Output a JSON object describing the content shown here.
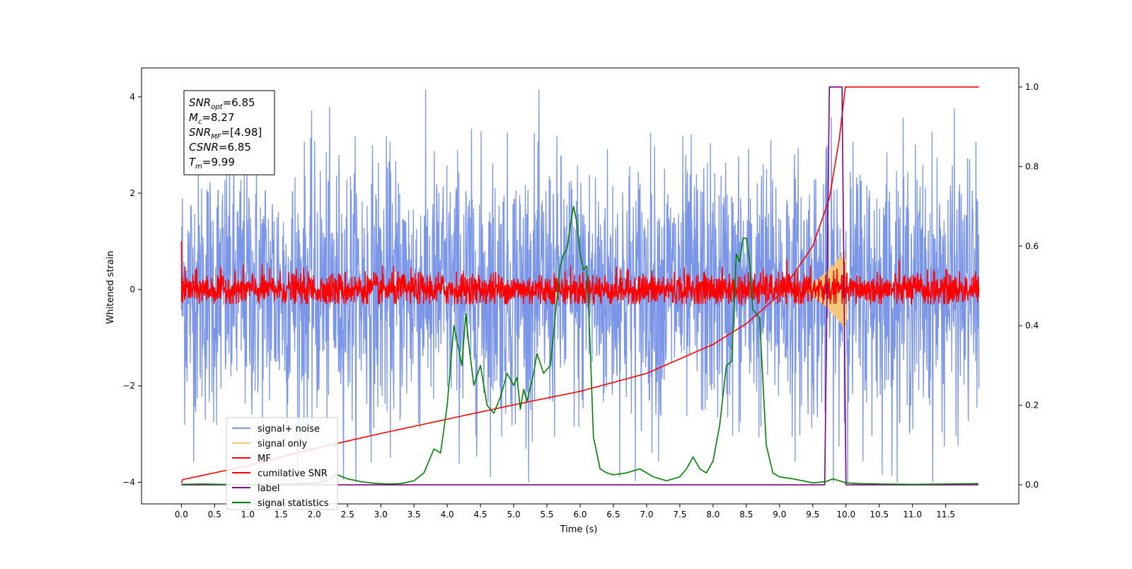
{
  "chart_data": {
    "type": "line",
    "title": "",
    "xlabel": "Time (s)",
    "ylabel": "Whitened strain",
    "y2label": "",
    "xlim": [
      -0.6,
      12.6
    ],
    "ylim": [
      -4.45,
      4.6
    ],
    "y2lim": [
      -0.048,
      1.048
    ],
    "xticks": [
      0.0,
      0.5,
      1.0,
      1.5,
      2.0,
      2.5,
      3.0,
      3.5,
      4.0,
      4.5,
      5.0,
      5.5,
      6.0,
      6.5,
      7.0,
      7.5,
      8.0,
      8.5,
      9.0,
      9.5,
      10.0,
      10.5,
      11.0,
      11.5
    ],
    "xtick_labels": [
      "0.0",
      "0.5",
      "1.0",
      "1.5",
      "2.0",
      "2.5",
      "3.0",
      "3.5",
      "4.0",
      "4.5",
      "5.0",
      "5.5",
      "6.0",
      "6.5",
      "7.0",
      "7.5",
      "8.0",
      "8.5",
      "9.0",
      "9.5",
      "10.0",
      "10.5",
      "11.0",
      "11.5"
    ],
    "yticks": [
      -4,
      -2,
      0,
      2,
      4
    ],
    "ytick_labels": [
      "−4",
      "−2",
      "0",
      "2",
      "4"
    ],
    "y2ticks": [
      0.0,
      0.2,
      0.4,
      0.6,
      0.8,
      1.0
    ],
    "y2tick_labels": [
      "0.0",
      "0.2",
      "0.4",
      "0.6",
      "0.8",
      "1.0"
    ],
    "grid": false,
    "legend_position": "lower-left",
    "annotation": [
      {
        "base": "SNR",
        "sub": "opt",
        "value": "=6.85"
      },
      {
        "base": "M",
        "sub": "c",
        "value": "=8.27"
      },
      {
        "base": "SNR",
        "sub": "MF",
        "value": "=[4.98]"
      },
      {
        "base": "CSNR",
        "sub": "",
        "value": "=6.85"
      },
      {
        "base": "T",
        "sub": "m",
        "value": "=9.99"
      }
    ],
    "series": [
      {
        "name": "signal+ noise",
        "axis": "left",
        "color": "#7b96e8",
        "description_noise": {
          "x_range": [
            0.0,
            12.0
          ],
          "typical_amplitude": 1.3,
          "extreme_range": [
            -4.0,
            4.15
          ]
        }
      },
      {
        "name": "signal only",
        "axis": "left",
        "color": "#f5c77a",
        "chirp": {
          "start": 9.3,
          "peak_time": 9.99,
          "end": 10.05,
          "peak_amplitude": 0.85
        }
      },
      {
        "name": "MF",
        "axis": "left",
        "color": "#ff0000",
        "description_noise": {
          "x_range": [
            0.0,
            12.0
          ],
          "typical_amplitude": 0.25,
          "extreme_range": [
            -0.3,
            1.0
          ]
        }
      },
      {
        "name": "cumilative SNR",
        "axis": "right",
        "color": "#ff0000",
        "x": [
          0.0,
          0.02,
          1.0,
          2.0,
          3.0,
          4.0,
          5.0,
          6.0,
          7.0,
          8.0,
          8.5,
          9.0,
          9.5,
          9.75,
          9.9,
          9.99,
          12.0
        ],
        "y": [
          0.005,
          0.013,
          0.048,
          0.091,
          0.129,
          0.165,
          0.201,
          0.235,
          0.28,
          0.353,
          0.405,
          0.478,
          0.6,
          0.72,
          0.87,
          1.0,
          1.0
        ]
      },
      {
        "name": "label",
        "axis": "right",
        "color": "#800080",
        "x": [
          0.0,
          9.68,
          9.75,
          9.94,
          10.0,
          11.99
        ],
        "y": [
          0.0,
          0.0,
          1.0,
          1.0,
          0.0,
          0.0
        ]
      },
      {
        "name": "signal statistics",
        "axis": "right",
        "color": "#008000",
        "x": [
          0.0,
          0.3,
          0.6,
          1.0,
          1.5,
          2.0,
          2.2,
          2.35,
          2.5,
          2.7,
          2.9,
          3.1,
          3.3,
          3.5,
          3.65,
          3.8,
          3.9,
          4.0,
          4.1,
          4.15,
          4.22,
          4.28,
          4.32,
          4.4,
          4.5,
          4.6,
          4.7,
          4.8,
          4.9,
          5.0,
          5.05,
          5.1,
          5.15,
          5.2,
          5.3,
          5.35,
          5.45,
          5.55,
          5.6,
          5.7,
          5.75,
          5.8,
          5.85,
          5.9,
          5.95,
          6.0,
          6.05,
          6.1,
          6.15,
          6.2,
          6.3,
          6.4,
          6.5,
          6.7,
          6.9,
          7.1,
          7.3,
          7.5,
          7.6,
          7.7,
          7.8,
          7.9,
          8.0,
          8.1,
          8.2,
          8.28,
          8.35,
          8.4,
          8.45,
          8.5,
          8.55,
          8.6,
          8.7,
          8.8,
          8.9,
          9.0,
          9.2,
          9.5,
          9.7,
          9.8,
          9.9,
          10.0,
          10.2,
          10.5,
          11.0,
          11.5,
          11.99
        ],
        "y": [
          0.001,
          0.002,
          0.001,
          0.0,
          0.001,
          0.004,
          0.01,
          0.025,
          0.015,
          0.008,
          0.004,
          0.002,
          0.003,
          0.01,
          0.03,
          0.09,
          0.08,
          0.2,
          0.4,
          0.36,
          0.3,
          0.43,
          0.36,
          0.25,
          0.3,
          0.2,
          0.18,
          0.22,
          0.28,
          0.25,
          0.27,
          0.19,
          0.24,
          0.21,
          0.28,
          0.33,
          0.28,
          0.3,
          0.38,
          0.55,
          0.58,
          0.59,
          0.65,
          0.7,
          0.66,
          0.58,
          0.54,
          0.55,
          0.35,
          0.12,
          0.04,
          0.03,
          0.025,
          0.03,
          0.04,
          0.02,
          0.01,
          0.02,
          0.04,
          0.07,
          0.04,
          0.03,
          0.06,
          0.15,
          0.3,
          0.31,
          0.58,
          0.56,
          0.62,
          0.62,
          0.56,
          0.44,
          0.42,
          0.1,
          0.03,
          0.02,
          0.015,
          0.005,
          0.008,
          0.015,
          0.01,
          0.005,
          0.003,
          0.002,
          0.001,
          0.002,
          0.003
        ]
      }
    ]
  }
}
